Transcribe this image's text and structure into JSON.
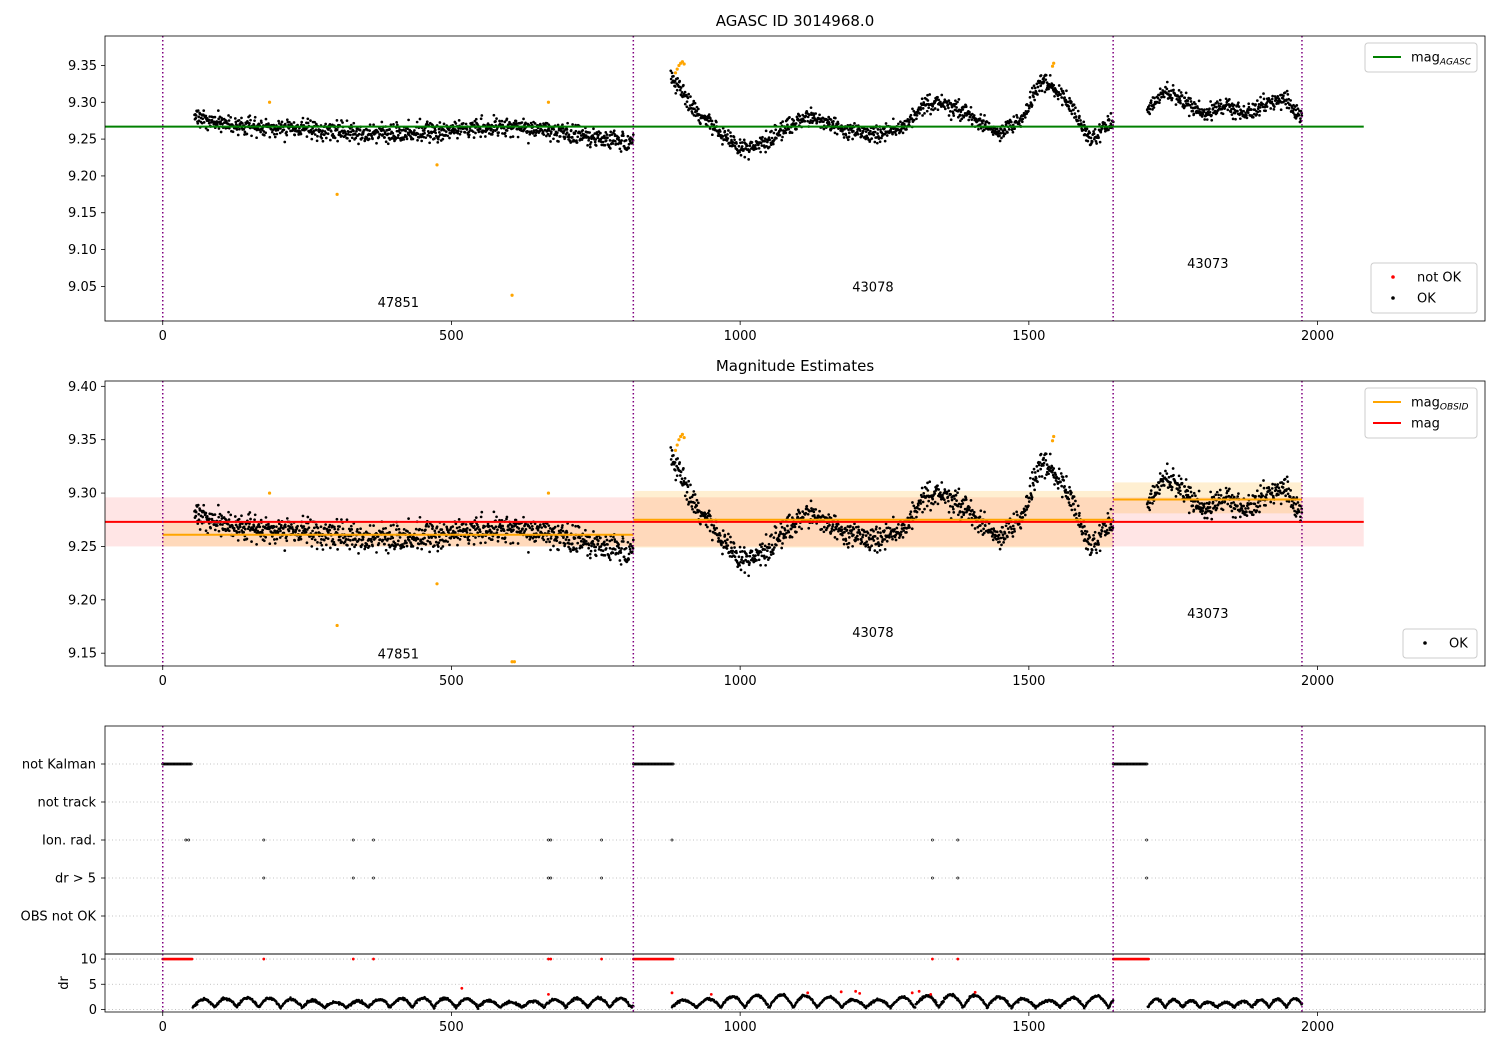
{
  "chart_data": [
    {
      "type": "scatter",
      "title": "AGASC ID 3014968.0",
      "xlim": [
        -100,
        2290
      ],
      "ylim": [
        9.003,
        9.39
      ],
      "x_ticks": [
        0,
        500,
        1000,
        1500,
        2000
      ],
      "y_ticks": [
        9.05,
        9.1,
        9.15,
        9.2,
        9.25,
        9.3,
        9.35
      ],
      "y_tick_labels": [
        "9.05",
        "9.10",
        "9.15",
        "9.20",
        "9.25",
        "9.30",
        "9.35"
      ],
      "obsid_boundaries": [
        0,
        815,
        1646,
        1973
      ],
      "obsid_labels": [
        {
          "text": "47851",
          "x": 408,
          "y": 9.022
        },
        {
          "text": "43078",
          "x": 1230,
          "y": 9.043
        },
        {
          "text": "43073",
          "x": 1810,
          "y": 9.075
        }
      ],
      "reference_lines": [
        {
          "name": "mag_AGASC",
          "y": 9.267,
          "x_range": [
            -100,
            2080
          ],
          "color": "#008000"
        }
      ],
      "ok_segments": [
        {
          "x": [
            55,
            815
          ],
          "knots": [
            9.28,
            9.268,
            9.265,
            9.262,
            9.256,
            9.258,
            9.262,
            9.268,
            9.262,
            9.252,
            9.245
          ],
          "noise": 0.012
        },
        {
          "x": [
            880,
            1646
          ],
          "knots": [
            9.335,
            9.29,
            9.262,
            9.235,
            9.245,
            9.268,
            9.28,
            9.268,
            9.26,
            9.255,
            9.268,
            9.3,
            9.295,
            9.28,
            9.258,
            9.275,
            9.33,
            9.305,
            9.25,
            9.275
          ],
          "noise": 0.011
        },
        {
          "x": [
            1705,
            1973
          ],
          "knots": [
            9.29,
            9.315,
            9.3,
            9.285,
            9.295,
            9.285,
            9.295,
            9.305,
            9.28
          ],
          "noise": 0.011
        }
      ],
      "outliers": [
        {
          "x": [
            185,
            302,
            475,
            605,
            668,
            888,
            891,
            894,
            897,
            900,
            903,
            1541,
            1543
          ],
          "y": [
            9.3,
            9.175,
            9.215,
            9.038,
            9.3,
            9.34,
            9.345,
            9.35,
            9.353,
            9.355,
            9.352,
            9.349,
            9.353
          ],
          "color": "#ffa500"
        }
      ],
      "legends": [
        {
          "position": "upper-right",
          "entries": [
            {
              "label": "mag",
              "sub": "AGASC",
              "kind": "line",
              "color": "#008000"
            }
          ]
        },
        {
          "position": "lower-right",
          "entries": [
            {
              "label": "not OK",
              "kind": "dot",
              "color": "#ff0000"
            },
            {
              "label": "OK",
              "kind": "dot",
              "color": "#000000"
            }
          ]
        }
      ]
    },
    {
      "type": "scatter",
      "title": "Magnitude Estimates",
      "xlim": [
        -100,
        2290
      ],
      "ylim": [
        9.138,
        9.405
      ],
      "x_ticks": [
        0,
        500,
        1000,
        1500,
        2000
      ],
      "y_ticks": [
        9.15,
        9.2,
        9.25,
        9.3,
        9.35,
        9.4
      ],
      "y_tick_labels": [
        "9.15",
        "9.20",
        "9.25",
        "9.30",
        "9.35",
        "9.40"
      ],
      "obsid_boundaries": [
        0,
        815,
        1646,
        1973
      ],
      "obsid_labels": [
        {
          "text": "47851",
          "x": 408,
          "y": 9.145
        },
        {
          "text": "43078",
          "x": 1230,
          "y": 9.165
        },
        {
          "text": "43073",
          "x": 1810,
          "y": 9.183
        }
      ],
      "bands": [
        {
          "x_range": [
            -100,
            2080
          ],
          "y_range": [
            9.25,
            9.296
          ],
          "color": "#ff0000",
          "opacity": 0.1
        },
        {
          "x_range": [
            0,
            815
          ],
          "y_range": [
            9.25,
            9.272
          ],
          "color": "#ffa500",
          "opacity": 0.18
        },
        {
          "x_range": [
            815,
            1646
          ],
          "y_range": [
            9.249,
            9.302
          ],
          "color": "#ffa500",
          "opacity": 0.18
        },
        {
          "x_range": [
            1646,
            1973
          ],
          "y_range": [
            9.281,
            9.31
          ],
          "color": "#ffa500",
          "opacity": 0.18
        }
      ],
      "reference_lines": [
        {
          "name": "mag",
          "y": 9.273,
          "x_range": [
            -100,
            2080
          ],
          "color": "#ff0000"
        },
        {
          "name": "mag_OBSID",
          "y": 9.261,
          "x_range": [
            0,
            815
          ],
          "color": "#ffa500"
        },
        {
          "name": "mag_OBSID",
          "y": 9.275,
          "x_range": [
            815,
            1646
          ],
          "color": "#ffa500"
        },
        {
          "name": "mag_OBSID",
          "y": 9.294,
          "x_range": [
            1646,
            1973
          ],
          "color": "#ffa500"
        }
      ],
      "ok_segments": [
        {
          "x": [
            55,
            815
          ],
          "knots": [
            9.28,
            9.268,
            9.265,
            9.262,
            9.256,
            9.258,
            9.262,
            9.268,
            9.262,
            9.252,
            9.245
          ],
          "noise": 0.012
        },
        {
          "x": [
            880,
            1646
          ],
          "knots": [
            9.335,
            9.29,
            9.262,
            9.235,
            9.245,
            9.268,
            9.28,
            9.268,
            9.26,
            9.255,
            9.268,
            9.3,
            9.295,
            9.28,
            9.258,
            9.275,
            9.33,
            9.305,
            9.25,
            9.275
          ],
          "noise": 0.011
        },
        {
          "x": [
            1705,
            1973
          ],
          "knots": [
            9.29,
            9.315,
            9.3,
            9.285,
            9.295,
            9.285,
            9.295,
            9.305,
            9.28
          ],
          "noise": 0.011
        }
      ],
      "outliers": [
        {
          "x": [
            185,
            302,
            475,
            605,
            609,
            668,
            888,
            891,
            894,
            897,
            900,
            903,
            1541,
            1543
          ],
          "y": [
            9.3,
            9.176,
            9.215,
            9.142,
            9.142,
            9.3,
            9.34,
            9.345,
            9.35,
            9.353,
            9.355,
            9.352,
            9.349,
            9.353
          ],
          "color": "#ffa500"
        }
      ],
      "legends": [
        {
          "position": "upper-right",
          "entries": [
            {
              "label": "mag",
              "sub": "OBSID",
              "kind": "line",
              "color": "#ffa500"
            },
            {
              "label": "mag",
              "kind": "line",
              "color": "#ff0000"
            }
          ]
        },
        {
          "position": "lower-right",
          "entries": [
            {
              "label": "OK",
              "kind": "dot",
              "color": "#000000"
            }
          ]
        }
      ]
    },
    {
      "type": "scatter",
      "title": "",
      "xlim": [
        -100,
        2290
      ],
      "categories": [
        "not Kalman",
        "not track",
        "Ion. rad.",
        "dr > 5",
        "OBS not OK"
      ],
      "obsid_boundaries": [
        0,
        815,
        1646,
        1973
      ],
      "flags": [
        {
          "category": "not Kalman",
          "ranges": [
            [
              0,
              50
            ],
            [
              815,
              885
            ],
            [
              1646,
              1705
            ]
          ]
        },
        {
          "category": "not track",
          "ranges": []
        },
        {
          "category": "Ion. rad.",
          "points": [
            40,
            45,
            175,
            330,
            365,
            668,
            672,
            760,
            882,
            1333,
            1377,
            1704
          ]
        },
        {
          "category": "dr > 5",
          "points": [
            175,
            330,
            365,
            668,
            672,
            760,
            1333,
            1377,
            1704
          ]
        },
        {
          "category": "OBS not OK",
          "ranges": []
        }
      ]
    },
    {
      "type": "scatter",
      "title": "",
      "ylabel": "dr",
      "xlim": [
        -100,
        2290
      ],
      "ylim": [
        -0.5,
        11
      ],
      "y_ticks": [
        0,
        5,
        10
      ],
      "y_tick_labels": [
        "0",
        "5",
        "10"
      ],
      "x_ticks": [
        0,
        500,
        1000,
        1500,
        2000
      ],
      "obsid_boundaries": [
        0,
        815,
        1646,
        1973
      ],
      "ok_segments": [
        {
          "x": [
            52,
            815
          ],
          "period": 38,
          "base": 0.4,
          "amp": 1.9
        },
        {
          "x": [
            882,
            1646
          ],
          "period": 42,
          "base": 0.4,
          "amp": 2.5
        },
        {
          "x": [
            1706,
            1973
          ],
          "period": 30,
          "base": 0.4,
          "amp": 1.8
        }
      ],
      "red_points": {
        "at_ten": [
          [
            0,
            52
          ],
          [
            815,
            885
          ],
          [
            1646,
            1708
          ]
        ],
        "single_at_ten": [
          175,
          330,
          365,
          668,
          672,
          760,
          1333,
          1377
        ],
        "scattered": {
          "x": [
            518,
            668,
            882,
            950,
            1117,
            1175,
            1200,
            1207,
            1298,
            1310,
            1330,
            1407
          ],
          "y": [
            4.2,
            3.0,
            3.3,
            3.0,
            3.3,
            3.5,
            3.6,
            3.2,
            3.3,
            3.6,
            3.0,
            3.4
          ]
        }
      }
    }
  ]
}
